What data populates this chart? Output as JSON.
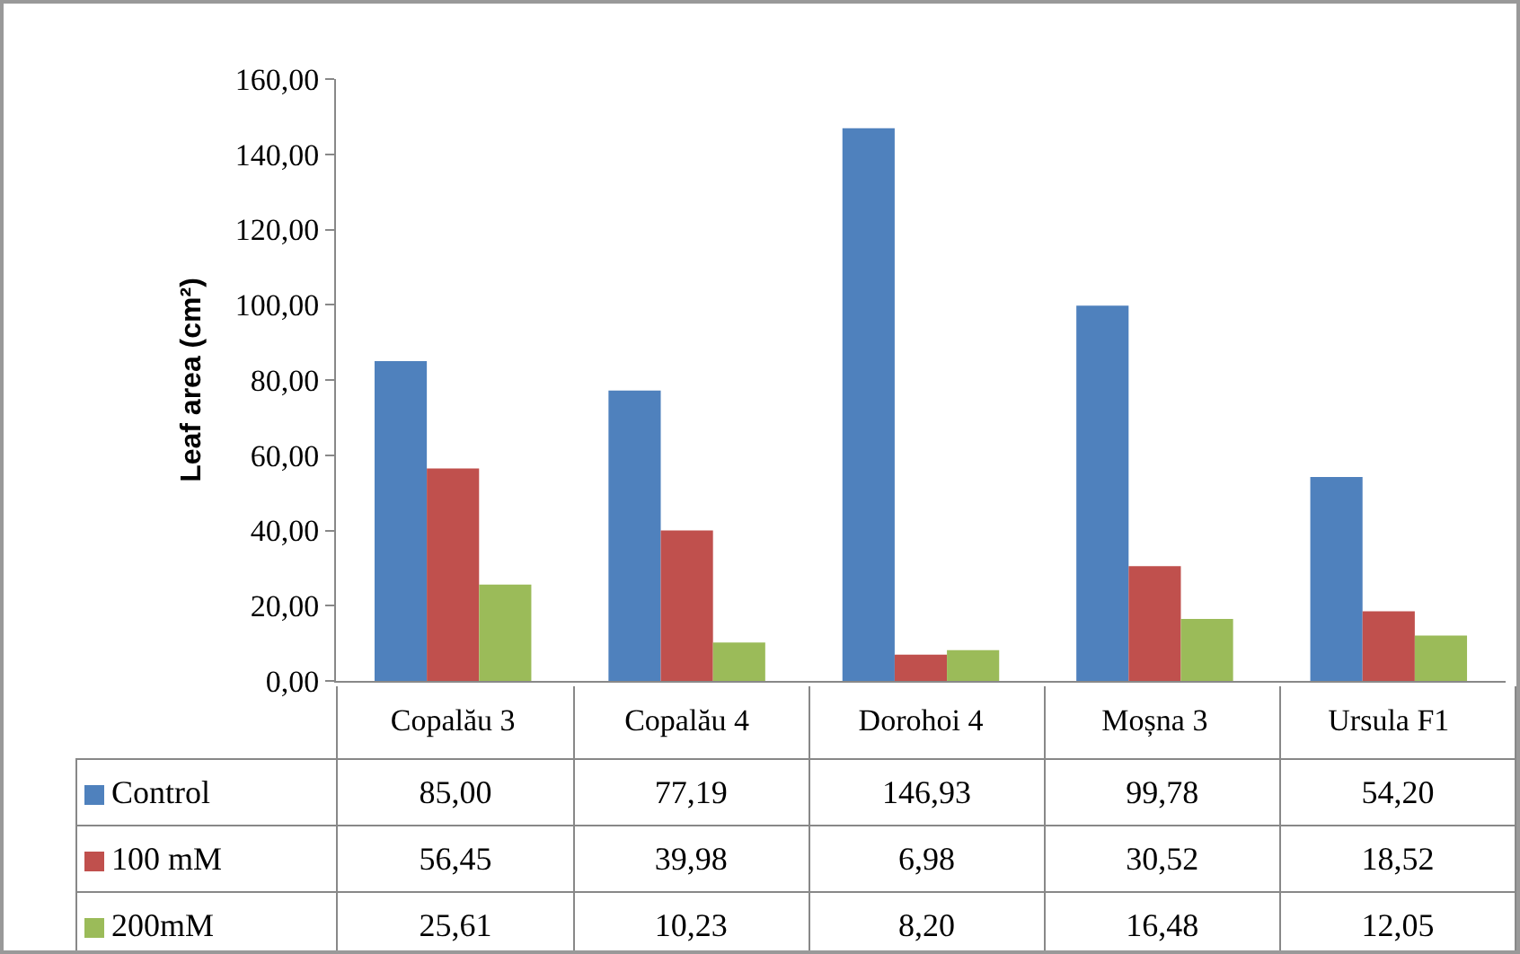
{
  "chart_data": {
    "type": "bar",
    "ylabel": "Leaf area (cm²)",
    "categories": [
      "Copalău 3",
      "Copalău 4",
      "Dorohoi 4",
      "Moșna 3",
      "Ursula F1"
    ],
    "series": [
      {
        "name": "Control",
        "color": "#4f81bd",
        "values": [
          85.0,
          77.19,
          146.93,
          99.78,
          54.2
        ],
        "value_labels": [
          "85,00",
          "77,19",
          "146,93",
          "99,78",
          "54,20"
        ]
      },
      {
        "name": "100 mM",
        "color": "#c0504d",
        "values": [
          56.45,
          39.98,
          6.98,
          30.52,
          18.52
        ],
        "value_labels": [
          "56,45",
          "39,98",
          "6,98",
          "30,52",
          "18,52"
        ]
      },
      {
        "name": "200mM",
        "color": "#9bbb59",
        "values": [
          25.61,
          10.23,
          8.2,
          16.48,
          12.05
        ],
        "value_labels": [
          "25,61",
          "10,23",
          "8,20",
          "16,48",
          "12,05"
        ]
      }
    ],
    "ylim": [
      0,
      160
    ],
    "legend": "bottom left",
    "yticks": [
      {
        "value": 0,
        "label": "0,00"
      },
      {
        "value": 20,
        "label": "20,00"
      },
      {
        "value": 40,
        "label": "40,00"
      },
      {
        "value": 60,
        "label": "60,00"
      },
      {
        "value": 80,
        "label": "80,00"
      },
      {
        "value": 100,
        "label": "100,00"
      },
      {
        "value": 120,
        "label": "120,00"
      },
      {
        "value": 140,
        "label": "140,00"
      },
      {
        "value": 160,
        "label": "160,00"
      }
    ]
  }
}
